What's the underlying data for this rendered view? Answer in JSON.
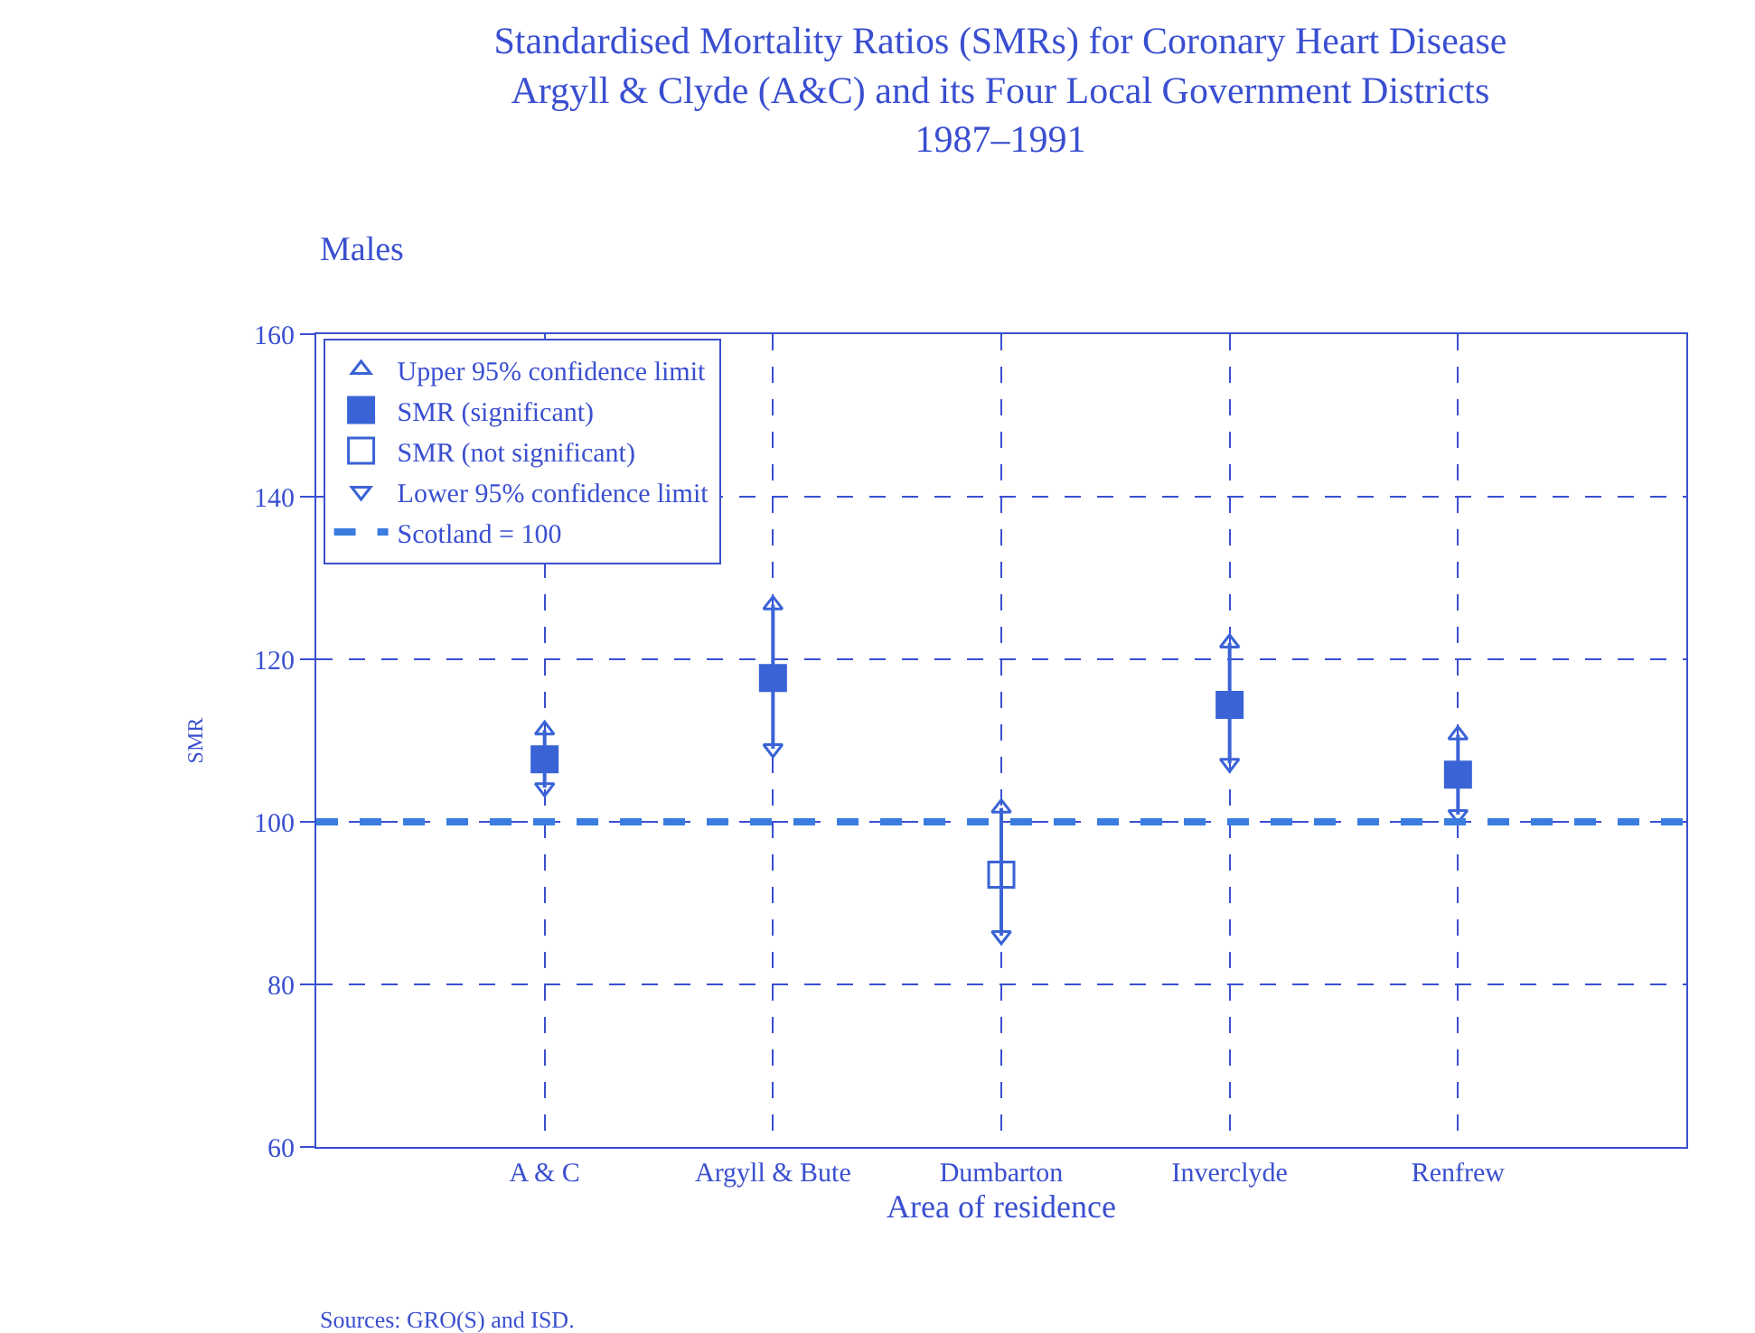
{
  "chart_data": {
    "type": "scatter",
    "title": "Standardised Mortality Ratios (SMRs) for Coronary Heart Disease\nArgyll & Clyde (A&C) and its Four Local Government Districts\n1987–1991",
    "subtitle": "Males",
    "xlabel": "Area of residence",
    "ylabel": "SMR",
    "categories": [
      "A & C",
      "Argyll & Bute",
      "Dumbarton",
      "Inverclyde",
      "Renfrew"
    ],
    "series": [
      {
        "name": "Upper 95% confidence limit",
        "color": "#3a63d6",
        "marker": "triangle",
        "values": [
          111.3,
          126.7,
          101.7,
          122,
          110.7
        ]
      },
      {
        "name": "SMR (significant)",
        "color": "#3a63d6",
        "marker": "square",
        "values": [
          107.7,
          117.7,
          null,
          114.4,
          105.8
        ]
      },
      {
        "name": "SMR (not significant)",
        "color": "#3a63d6",
        "marker": "square-open",
        "values": [
          null,
          null,
          93.5,
          null,
          null
        ]
      },
      {
        "name": "Lower 95% confidence limit",
        "color": "#3a63d6",
        "marker": "triangle-down",
        "values": [
          104.2,
          109,
          86,
          107.2,
          100.9
        ]
      }
    ],
    "ref_lines": [
      {
        "axis": "y",
        "value": 100,
        "label": "Scotland = 100",
        "color": "#3a7ce0",
        "line_style": "dashed"
      }
    ],
    "ylim": [
      60,
      160
    ],
    "yticks": [
      60,
      80,
      100,
      120,
      140,
      160
    ],
    "grid": true,
    "legend": "top left",
    "annotations": [
      "Sources: GRO(S) and ISD."
    ]
  }
}
